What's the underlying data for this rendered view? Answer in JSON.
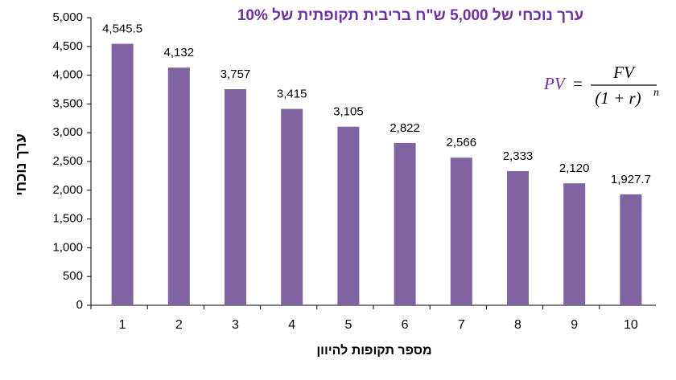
{
  "chart_data": {
    "type": "bar",
    "title": "ערך נוכחי של  5,000 ש\"ח בריבית תקופתית של 10%",
    "x_label": "מספר תקופות להיוון",
    "y_label": "ערך נוכחי",
    "categories": [
      "1",
      "2",
      "3",
      "4",
      "5",
      "6",
      "7",
      "8",
      "9",
      "10"
    ],
    "values": [
      4545.5,
      4132,
      3757,
      3415,
      3105,
      2822,
      2566,
      2333,
      2120,
      1927.7
    ],
    "value_labels": [
      "4,545.5",
      "4,132",
      "3,757",
      "3,415",
      "3,105",
      "2,822",
      "2,566",
      "2,333",
      "2,120",
      "1,927.7"
    ],
    "color": "#8064a2",
    "ylim": [
      0,
      5000
    ],
    "yticks": [
      0,
      500,
      {
        "value": 1000,
        "label": "1,000"
      },
      {
        "value": 1500,
        "label": "1,500"
      },
      {
        "value": 2000,
        "label": "2,000"
      },
      {
        "value": 2500,
        "label": "2,500"
      },
      {
        "value": 3000,
        "label": "3,000"
      },
      {
        "value": 3500,
        "label": "3,500"
      },
      {
        "value": 4000,
        "label": "4,000"
      },
      {
        "value": 4500,
        "label": "4,500"
      },
      {
        "value": 5000,
        "label": "5,000"
      }
    ],
    "grid": false,
    "formula": {
      "lhs": "PV",
      "equals": "=",
      "numerator": "FV",
      "denominator": "(1 + r)",
      "exponent": "n"
    }
  }
}
